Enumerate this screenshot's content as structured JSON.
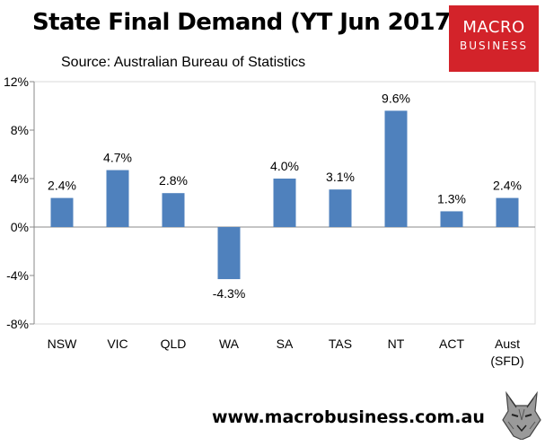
{
  "header": {
    "title": "State Final Demand (YT Jun 2017)",
    "source": "Source: Australian Bureau of Statistics"
  },
  "logo": {
    "line1": "MACRO",
    "line2": "BUSINESS"
  },
  "footer": {
    "url": "www.macrobusiness.com.au"
  },
  "mascot": {
    "icon": "wolf-icon"
  },
  "chart_data": {
    "type": "bar",
    "title": "State Final Demand (YT Jun 2017)",
    "categories": [
      "NSW",
      "VIC",
      "QLD",
      "WA",
      "SA",
      "TAS",
      "NT",
      "ACT",
      "Aust (SFD)"
    ],
    "category_lines": [
      [
        "NSW"
      ],
      [
        "VIC"
      ],
      [
        "QLD"
      ],
      [
        "WA"
      ],
      [
        "SA"
      ],
      [
        "TAS"
      ],
      [
        "NT"
      ],
      [
        "ACT"
      ],
      [
        "Aust",
        "(SFD)"
      ]
    ],
    "values": [
      2.4,
      4.7,
      2.8,
      -4.3,
      4.0,
      3.1,
      9.6,
      1.3,
      2.4
    ],
    "data_labels": [
      "2.4%",
      "4.7%",
      "2.8%",
      "-4.3%",
      "4.0%",
      "3.1%",
      "9.6%",
      "1.3%",
      "2.4%"
    ],
    "ylim": [
      -8,
      12
    ],
    "yticks": [
      -8,
      -4,
      0,
      4,
      8,
      12
    ],
    "ytick_labels": [
      "-8%",
      "-4%",
      "0%",
      "4%",
      "8%",
      "12%"
    ],
    "xlabel": "",
    "ylabel": "",
    "grid": false,
    "legend": "none",
    "bar_color": "#4f81bd"
  }
}
